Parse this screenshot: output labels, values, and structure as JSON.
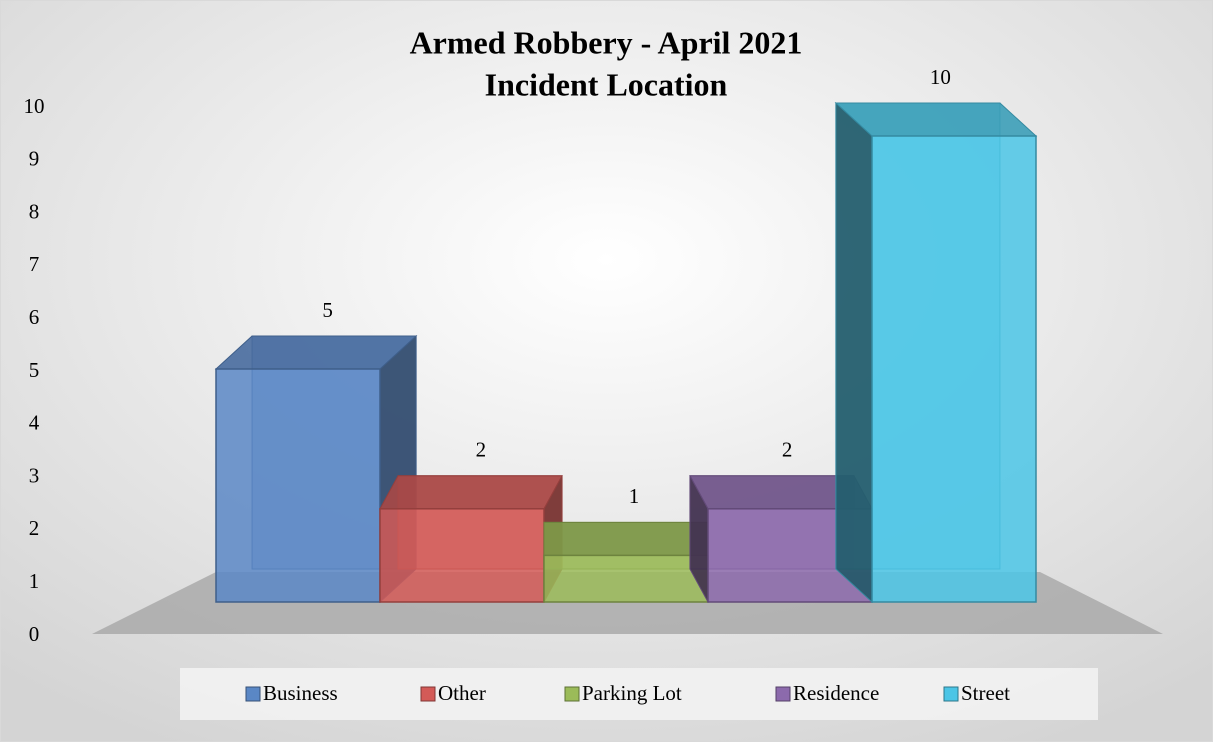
{
  "chart_data": {
    "type": "bar3d",
    "title": [
      "Armed Robbery - April 2021",
      "Incident Location"
    ],
    "series": [
      {
        "name": "Business",
        "color": "#5a87c5",
        "values": [
          5
        ]
      },
      {
        "name": "Other",
        "color": "#d35a57",
        "values": [
          2
        ]
      },
      {
        "name": "Parking Lot",
        "color": "#9bbb59",
        "values": [
          1
        ]
      },
      {
        "name": "Residence",
        "color": "#8c6aac",
        "values": [
          2
        ]
      },
      {
        "name": "Street",
        "color": "#4bc5e6",
        "values": [
          10
        ]
      }
    ],
    "ylim": [
      0,
      10
    ],
    "yticks": [
      0,
      1,
      2,
      3,
      4,
      5,
      6,
      7,
      8,
      9,
      10
    ],
    "legend": "bottom"
  }
}
